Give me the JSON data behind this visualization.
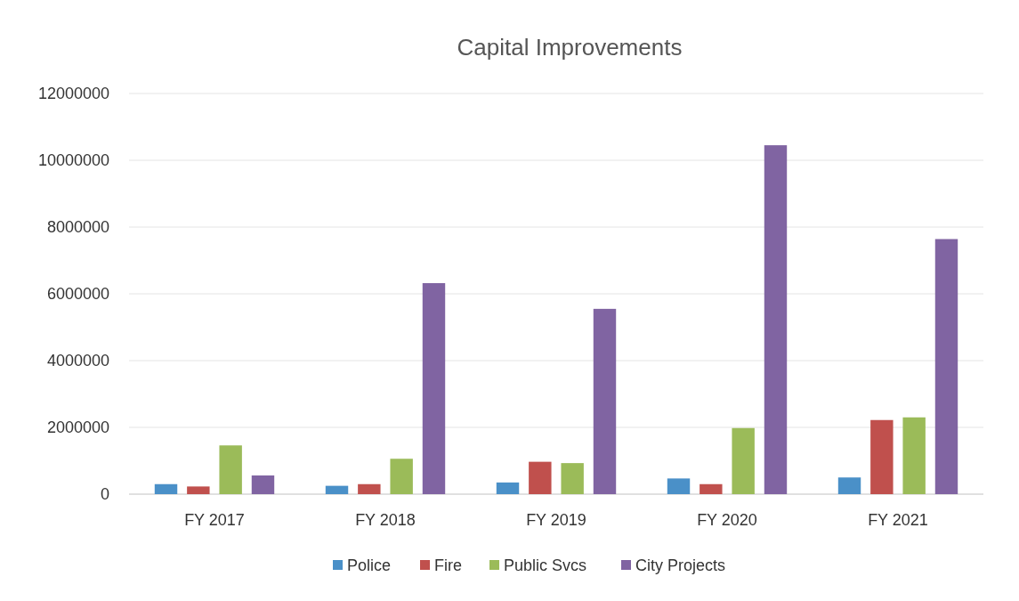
{
  "chart_data": {
    "type": "bar",
    "title": "Capital Improvements",
    "categories": [
      "FY 2017",
      "FY 2018",
      "FY 2019",
      "FY 2020",
      "FY 2021"
    ],
    "series": [
      {
        "name": "Police",
        "color": "#4a90c8",
        "values": [
          300000,
          250000,
          350000,
          470000,
          500000
        ]
      },
      {
        "name": "Fire",
        "color": "#c0504d",
        "values": [
          230000,
          300000,
          970000,
          300000,
          2220000
        ]
      },
      {
        "name": "Public Svcs",
        "color": "#9bbb59",
        "values": [
          1460000,
          1060000,
          930000,
          1980000,
          2300000
        ]
      },
      {
        "name": "City Projects",
        "color": "#8064a2",
        "values": [
          560000,
          6320000,
          5550000,
          10450000,
          7640000
        ]
      }
    ],
    "ylim": [
      0,
      12000000
    ],
    "yticks": [
      0,
      2000000,
      4000000,
      6000000,
      8000000,
      10000000,
      12000000
    ],
    "grid": "y",
    "legend": "bottom"
  }
}
